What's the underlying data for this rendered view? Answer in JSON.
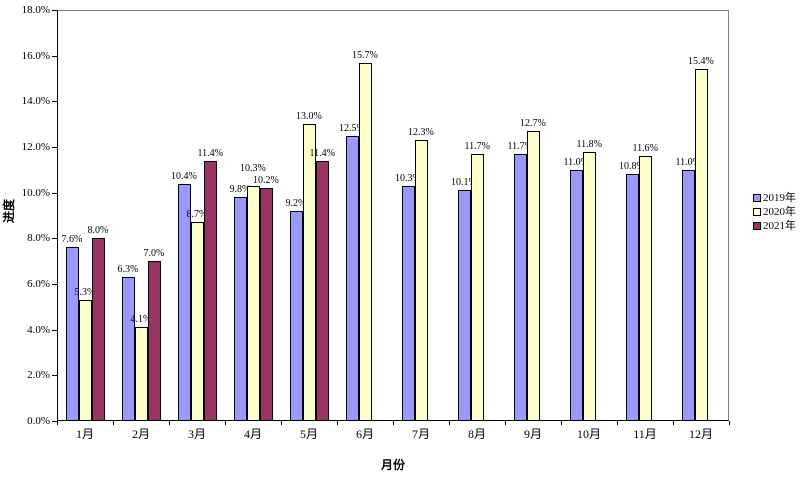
{
  "chart_data": {
    "type": "bar",
    "title": "",
    "xlabel": "月份",
    "ylabel": "进度",
    "categories": [
      "1月",
      "2月",
      "3月",
      "4月",
      "5月",
      "6月",
      "7月",
      "8月",
      "9月",
      "10月",
      "11月",
      "12月"
    ],
    "series": [
      {
        "name": "2019年",
        "color": "#9999ff",
        "values": [
          7.6,
          6.3,
          10.4,
          9.8,
          9.2,
          12.5,
          10.3,
          10.1,
          11.7,
          11.0,
          10.8,
          11.0
        ]
      },
      {
        "name": "2020年",
        "color": "#ffffcc",
        "values": [
          5.3,
          4.1,
          8.7,
          10.3,
          13.0,
          15.7,
          12.3,
          11.7,
          12.7,
          11.8,
          11.6,
          15.4
        ]
      },
      {
        "name": "2021年",
        "color": "#993366",
        "values": [
          8.0,
          7.0,
          11.4,
          10.2,
          11.4,
          null,
          null,
          null,
          null,
          null,
          null,
          null
        ]
      }
    ],
    "y_ticks": [
      "0.0%",
      "2.0%",
      "4.0%",
      "6.0%",
      "8.0%",
      "10.0%",
      "12.0%",
      "14.0%",
      "16.0%",
      "18.0%"
    ],
    "ylim": [
      0,
      18
    ],
    "grid": false,
    "data_labels": true,
    "legend_position": "right",
    "colors": {
      "bar_border": "#000000",
      "plot_border": "#808080",
      "axis": "#000000",
      "background": "#ffffff"
    }
  }
}
